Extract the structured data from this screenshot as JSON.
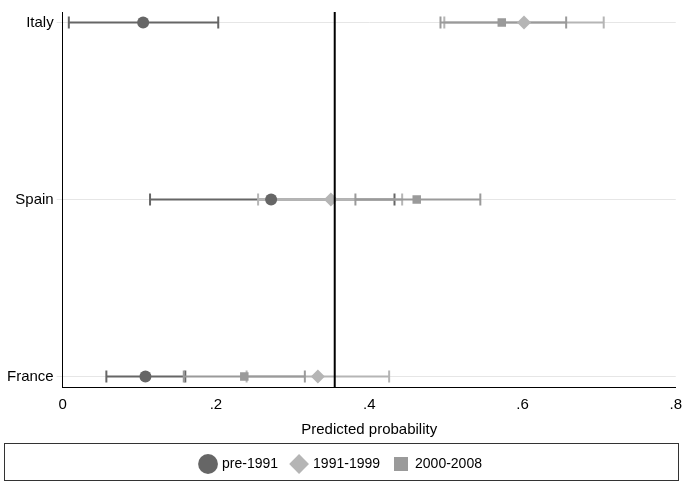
{
  "chart_data": {
    "type": "scatter",
    "orientation": "horizontal",
    "categories": [
      "Italy",
      "Spain",
      "France"
    ],
    "x_label": "Predicted probability",
    "xlim": [
      0,
      0.8
    ],
    "xticks": [
      0,
      {
        "value": 0.2,
        "label": ".2"
      },
      {
        "value": 0.4,
        "label": ".4"
      },
      {
        "value": 0.6,
        "label": ".6"
      },
      {
        "value": 0.8,
        "label": ".8"
      }
    ],
    "reference_line": 0.355,
    "grid": true,
    "legend": "bottom",
    "series": [
      {
        "name": "pre-1991",
        "color": "#666666",
        "marker": "circle",
        "values": [
          0.105,
          0.272,
          0.108
        ],
        "ci_low": [
          0.008,
          0.114,
          0.057
        ],
        "ci_high": [
          0.203,
          0.433,
          0.16
        ]
      },
      {
        "name": "1991-1999",
        "color": "#b5b5b5",
        "marker": "diamond",
        "values": [
          0.602,
          0.35,
          0.333
        ],
        "ci_low": [
          0.498,
          0.255,
          0.24
        ],
        "ci_high": [
          0.706,
          0.443,
          0.426
        ]
      },
      {
        "name": "2000-2008",
        "color": "#9a9a9a",
        "marker": "square",
        "values": [
          0.573,
          0.462,
          0.237
        ],
        "ci_low": [
          0.493,
          0.382,
          0.158
        ],
        "ci_high": [
          0.657,
          0.545,
          0.316
        ]
      }
    ]
  }
}
